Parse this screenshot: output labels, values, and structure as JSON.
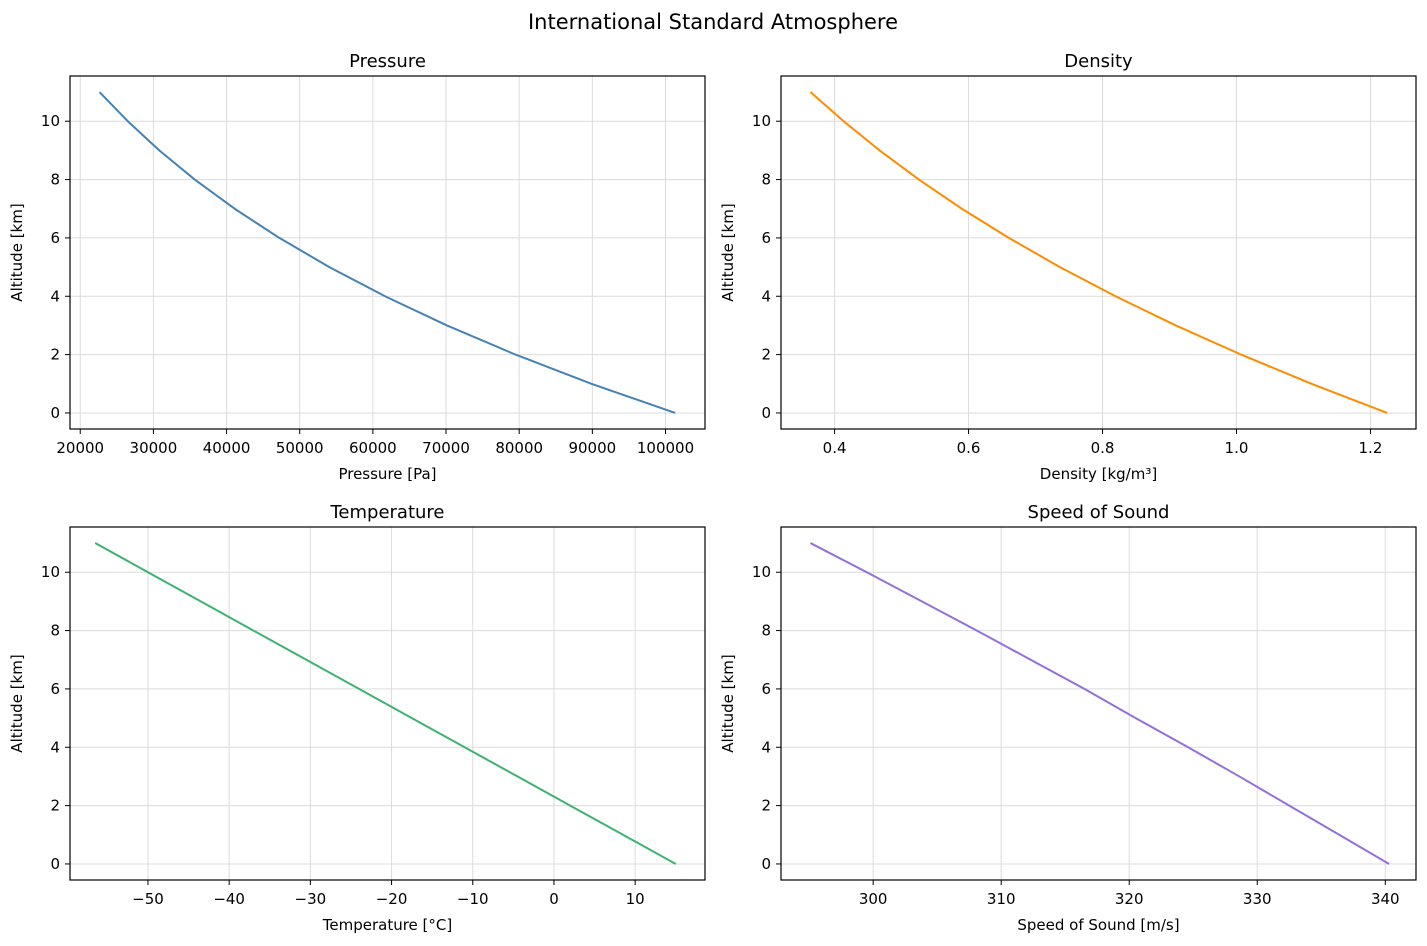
{
  "title": "International Standard Atmosphere",
  "chart_data": [
    {
      "type": "line",
      "title": "Pressure",
      "xlabel": "Pressure [Pa]",
      "ylabel": "Altitude [km]",
      "color": "#4682b4",
      "grid": true,
      "xlim": [
        18600,
        105400
      ],
      "ylim": [
        -0.55,
        11.55
      ],
      "xticks": [
        20000,
        30000,
        40000,
        50000,
        60000,
        70000,
        80000,
        90000,
        100000
      ],
      "xtick_labels": [
        "20000",
        "30000",
        "40000",
        "50000",
        "60000",
        "70000",
        "80000",
        "90000",
        "100000"
      ],
      "yticks": [
        0,
        2,
        4,
        6,
        8,
        10
      ],
      "ytick_labels": [
        "0",
        "2",
        "4",
        "6",
        "8",
        "10"
      ],
      "x": [
        101325,
        89876,
        79501,
        70121,
        61660,
        54048,
        47217,
        41105,
        35651,
        30800,
        26500,
        22632
      ],
      "y": [
        0,
        1,
        2,
        3,
        4,
        5,
        6,
        7,
        8,
        9,
        10,
        11
      ]
    },
    {
      "type": "line",
      "title": "Density",
      "xlabel": "Density [kg/m³]",
      "ylabel": "Altitude [km]",
      "color": "#ff8c00",
      "grid": true,
      "xlim": [
        0.32,
        1.268
      ],
      "ylim": [
        -0.55,
        11.55
      ],
      "xticks": [
        0.4,
        0.6,
        0.8,
        1.0,
        1.2
      ],
      "xtick_labels": [
        "0.4",
        "0.6",
        "0.8",
        "1.0",
        "1.2"
      ],
      "yticks": [
        0,
        2,
        4,
        6,
        8,
        10
      ],
      "ytick_labels": [
        "0",
        "2",
        "4",
        "6",
        "8",
        "10"
      ],
      "x": [
        1.225,
        1.112,
        1.007,
        0.9093,
        0.8194,
        0.7364,
        0.6601,
        0.59,
        0.5258,
        0.4671,
        0.4135,
        0.3639
      ],
      "y": [
        0,
        1,
        2,
        3,
        4,
        5,
        6,
        7,
        8,
        9,
        10,
        11
      ]
    },
    {
      "type": "line",
      "title": "Temperature",
      "xlabel": "Temperature [°C]",
      "ylabel": "Altitude [km]",
      "color": "#3cb371",
      "grid": true,
      "xlim": [
        -59.6,
        18.6
      ],
      "ylim": [
        -0.55,
        11.55
      ],
      "xticks": [
        -50,
        -40,
        -30,
        -20,
        -10,
        0,
        10
      ],
      "xtick_labels": [
        "−50",
        "−40",
        "−30",
        "−20",
        "−10",
        "0",
        "10"
      ],
      "yticks": [
        0,
        2,
        4,
        6,
        8,
        10
      ],
      "ytick_labels": [
        "0",
        "2",
        "4",
        "6",
        "8",
        "10"
      ],
      "x": [
        15,
        8.5,
        2,
        -4.5,
        -11,
        -17.5,
        -24,
        -30.5,
        -37,
        -43.5,
        -50,
        -56.5
      ],
      "y": [
        0,
        1,
        2,
        3,
        4,
        5,
        6,
        7,
        8,
        9,
        10,
        11
      ]
    },
    {
      "type": "line",
      "title": "Speed of Sound",
      "xlabel": "Speed of Sound [m/s]",
      "ylabel": "Altitude [km]",
      "color": "#9370db",
      "grid": true,
      "xlim": [
        292.8,
        342.4
      ],
      "ylim": [
        -0.55,
        11.55
      ],
      "xticks": [
        300,
        310,
        320,
        330,
        340
      ],
      "xtick_labels": [
        "300",
        "310",
        "320",
        "330",
        "340"
      ],
      "yticks": [
        0,
        2,
        4,
        6,
        8,
        10
      ],
      "ytick_labels": [
        "0",
        "2",
        "4",
        "6",
        "8",
        "10"
      ],
      "x": [
        340.3,
        336.4,
        332.5,
        328.6,
        324.6,
        320.5,
        316.5,
        312.3,
        308.1,
        303.8,
        299.5,
        295.1
      ],
      "y": [
        0,
        1,
        2,
        3,
        4,
        5,
        6,
        7,
        8,
        9,
        10,
        11
      ]
    }
  ]
}
